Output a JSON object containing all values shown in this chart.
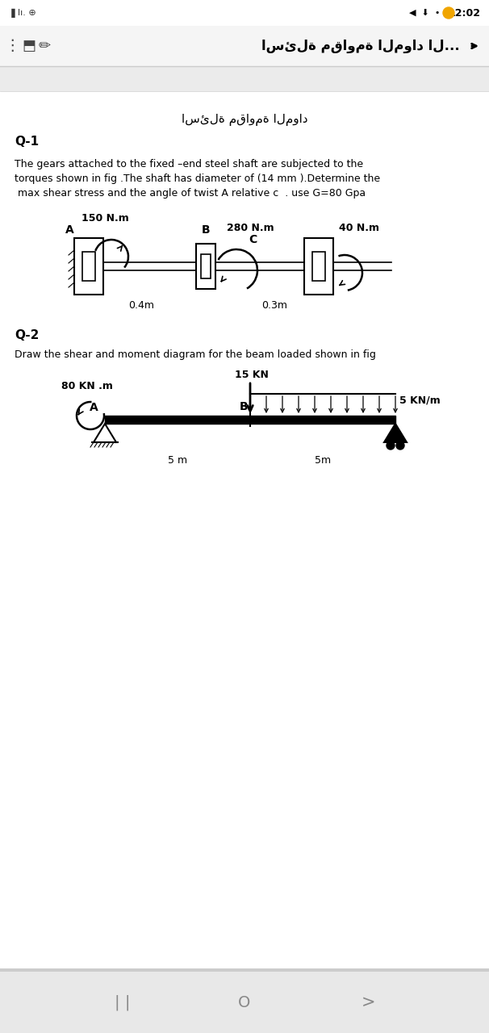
{
  "bg_color": "#ffffff",
  "status_time": "12:02",
  "header_title_ar": "اسئلة مقاومة المواد ال...",
  "page_title_arabic": "اسئلة مقاومة المواد",
  "q1_label": "Q-1",
  "q1_text_line1": "The gears attached to the fixed –end steel shaft are subjected to the",
  "q1_text_line2": "torques shown in fig .The shaft has diameter of (14 mm ).Determine the",
  "q1_text_line3": " max shear stress and the angle of twist A relative c  . use G=80 Gpa",
  "torque_A": "150 N.m",
  "torque_B_label": "280 N.m",
  "torque_C": "40 N.m",
  "label_A": "A",
  "label_B": "B",
  "label_C": "C",
  "dist_AB": "0.4m",
  "dist_BC": "0.3m",
  "q2_label": "Q-2",
  "q2_text": "Draw the shear and moment diagram for the beam loaded shown in fig",
  "beam_force": "15 KN",
  "beam_moment": "80 KN .m",
  "beam_dist_load": "5 KN/m",
  "beam_label_A": "A",
  "beam_label_B": "B",
  "beam_dist1": "5 m",
  "beam_dist2": "5m",
  "nav_bar_bg": "#e8e8e8",
  "header_bg": "#f5f5f5",
  "gray_strip_bg": "#ebebeb",
  "text_color": "#000000",
  "gray_color": "#888888",
  "fig_w": 6.06,
  "fig_h": 12.8,
  "dpi": 100
}
